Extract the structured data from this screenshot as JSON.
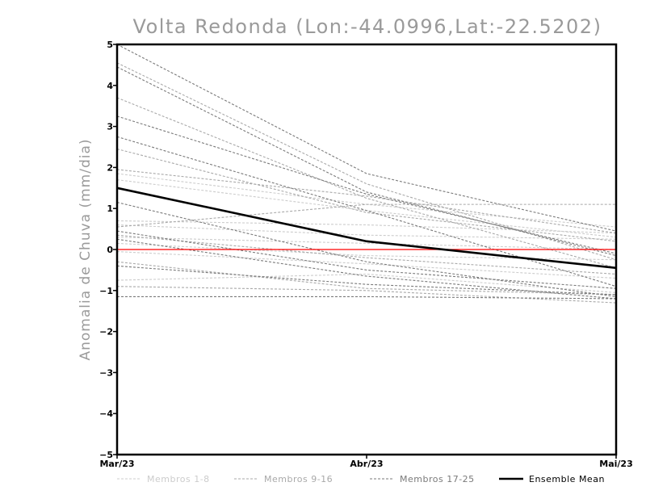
{
  "chart_data": {
    "type": "line",
    "title": "Volta Redonda (Lon:-44.0996,Lat:-22.5202)",
    "ylabel": "Anomalia de Chuva (mm/dia)",
    "xlabel": "",
    "categories": [
      "Mar/23",
      "Abr/23",
      "Mai/23"
    ],
    "ylim": [
      -5,
      5
    ],
    "yticks": [
      -5,
      -4,
      -3,
      -2,
      -1,
      0,
      1,
      2,
      3,
      4,
      5
    ],
    "zero_line_color": "#ff0000",
    "groups": [
      {
        "name": "Membros 1-8",
        "color": "#cccccc",
        "members": [
          [
            1.85,
            1.1,
            0.55
          ],
          [
            0.7,
            0.6,
            0.4
          ],
          [
            0.6,
            0.35,
            0.25
          ],
          [
            0.3,
            0.15,
            0.0
          ],
          [
            0.15,
            -0.15,
            -0.25
          ],
          [
            -0.05,
            -0.35,
            -0.7
          ],
          [
            -0.75,
            -0.6,
            -1.05
          ],
          [
            1.7,
            0.95,
            0.3
          ]
        ]
      },
      {
        "name": "Membros 9-16",
        "color": "#a9a9a9",
        "members": [
          [
            4.55,
            1.6,
            -0.25
          ],
          [
            3.7,
            1.25,
            -0.45
          ],
          [
            2.45,
            0.9,
            0.2
          ],
          [
            0.55,
            1.1,
            1.1
          ],
          [
            0.35,
            -0.2,
            -0.6
          ],
          [
            -0.3,
            -0.95,
            -1.1
          ],
          [
            -0.9,
            -1.0,
            -1.3
          ],
          [
            1.95,
            1.3,
            0.4
          ]
        ]
      },
      {
        "name": "Membros 17-25",
        "color": "#7a7a7a",
        "members": [
          [
            5.0,
            1.85,
            0.45
          ],
          [
            4.45,
            1.4,
            -0.15
          ],
          [
            3.25,
            1.35,
            -0.1
          ],
          [
            2.75,
            0.95,
            -0.9
          ],
          [
            1.15,
            -0.3,
            -1.15
          ],
          [
            0.45,
            -0.5,
            -0.95
          ],
          [
            0.25,
            -0.65,
            -1.2
          ],
          [
            -0.4,
            -0.85,
            -1.1
          ],
          [
            -1.15,
            -1.15,
            -1.2
          ]
        ]
      }
    ],
    "series": [
      {
        "name": "Ensemble Mean",
        "color": "#000000",
        "values": [
          1.5,
          0.2,
          -0.45
        ]
      }
    ],
    "legend": {
      "placement": "bottom",
      "entries": [
        "Membros 1-8",
        "Membros 9-16",
        "Membros 17-25",
        "Ensemble Mean"
      ]
    }
  }
}
